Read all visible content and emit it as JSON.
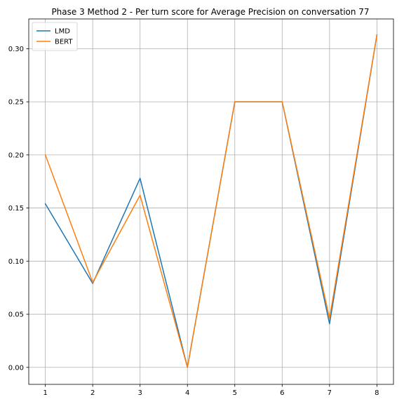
{
  "chart_data": {
    "type": "line",
    "title": "Phase 3 Method 2 - Per turn score for Average Precision on conversation 77",
    "xlabel": "",
    "ylabel": "",
    "x": [
      1,
      2,
      3,
      4,
      5,
      6,
      7,
      8
    ],
    "x_ticks": [
      "1",
      "2",
      "3",
      "4",
      "5",
      "6",
      "7",
      "8"
    ],
    "y_ticks": [
      "0.00",
      "0.05",
      "0.10",
      "0.15",
      "0.20",
      "0.25",
      "0.30"
    ],
    "y_tick_values": [
      0.0,
      0.05,
      0.1,
      0.15,
      0.2,
      0.25,
      0.3
    ],
    "xlim": [
      0.65,
      8.35
    ],
    "ylim": [
      -0.016,
      0.328
    ],
    "grid": true,
    "legend_position": "top-left",
    "series": [
      {
        "name": "LMD",
        "color": "#1f77b4",
        "values": [
          0.154,
          0.079,
          0.178,
          0.0,
          0.25,
          0.25,
          0.041,
          0.313
        ]
      },
      {
        "name": "BERT",
        "color": "#ff7f0e",
        "values": [
          0.2,
          0.08,
          0.162,
          0.0,
          0.25,
          0.25,
          0.046,
          0.313
        ]
      }
    ]
  }
}
